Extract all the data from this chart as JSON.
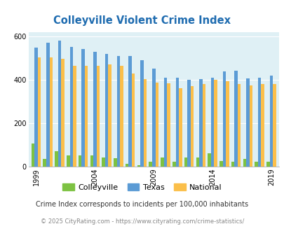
{
  "title": "Colleyville Violent Crime Index",
  "years": [
    1999,
    2000,
    2001,
    2002,
    2003,
    2004,
    2005,
    2006,
    2007,
    2008,
    2009,
    2010,
    2011,
    2012,
    2013,
    2014,
    2015,
    2016,
    2017,
    2018,
    2019
  ],
  "colleyville": [
    107,
    33,
    70,
    52,
    50,
    50,
    42,
    38,
    13,
    5,
    20,
    40,
    22,
    42,
    42,
    60,
    25,
    20,
    35,
    20,
    20
  ],
  "texas": [
    548,
    572,
    582,
    553,
    543,
    530,
    520,
    510,
    510,
    492,
    452,
    410,
    410,
    400,
    405,
    410,
    438,
    442,
    408,
    410,
    420
  ],
  "national": [
    505,
    504,
    497,
    464,
    465,
    466,
    473,
    466,
    430,
    404,
    389,
    385,
    363,
    372,
    380,
    399,
    395,
    380,
    375,
    380,
    380
  ],
  "colleyville_color": "#7dc242",
  "texas_color": "#5b9bd5",
  "national_color": "#fbbf4a",
  "plot_bg": "#dff0f5",
  "ylim": [
    0,
    620
  ],
  "yticks": [
    0,
    200,
    400,
    600
  ],
  "xlabel_years": [
    1999,
    2004,
    2009,
    2014,
    2019
  ],
  "footer1": "Crime Index corresponds to incidents per 100,000 inhabitants",
  "footer2": "© 2025 CityRating.com - https://www.cityrating.com/crime-statistics/",
  "title_color": "#1f6cb0",
  "footer1_color": "#333333",
  "footer2_color": "#888888"
}
